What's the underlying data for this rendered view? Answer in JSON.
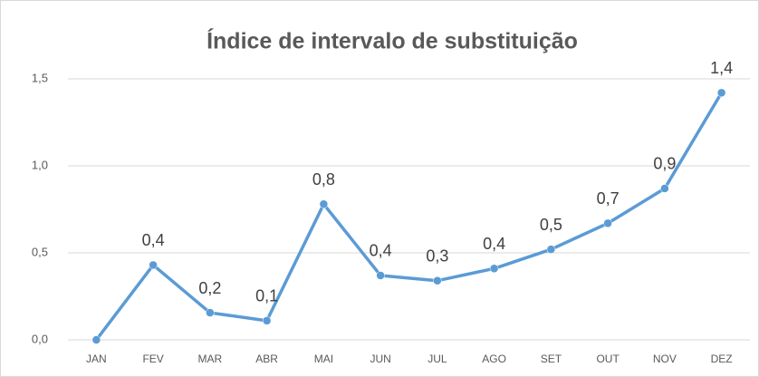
{
  "chart_data": {
    "type": "line",
    "title": "Índice de intervalo de substituição",
    "categories": [
      "JAN",
      "FEV",
      "MAR",
      "ABR",
      "MAI",
      "JUN",
      "JUL",
      "AGO",
      "SET",
      "OUT",
      "NOV",
      "DEZ"
    ],
    "values": [
      0,
      0.43,
      0.156,
      0.11,
      0.78,
      0.37,
      0.34,
      0.41,
      0.52,
      0.67,
      0.87,
      1.42
    ],
    "value_labels": [
      null,
      "0,4",
      "0,2",
      "0,1",
      "0,8",
      "0,4",
      "0,3",
      "0,4",
      "0,5",
      "0,7",
      "0,9",
      "1,4"
    ],
    "color": "#5b9bd5",
    "ylim": [
      0,
      1.5
    ],
    "yticks": [
      {
        "value": 0,
        "label": "0,0"
      },
      {
        "value": 0.5,
        "label": "0,5"
      },
      {
        "value": 1,
        "label": "1,0"
      },
      {
        "value": 1.5,
        "label": "1,5"
      }
    ],
    "grid": true
  }
}
